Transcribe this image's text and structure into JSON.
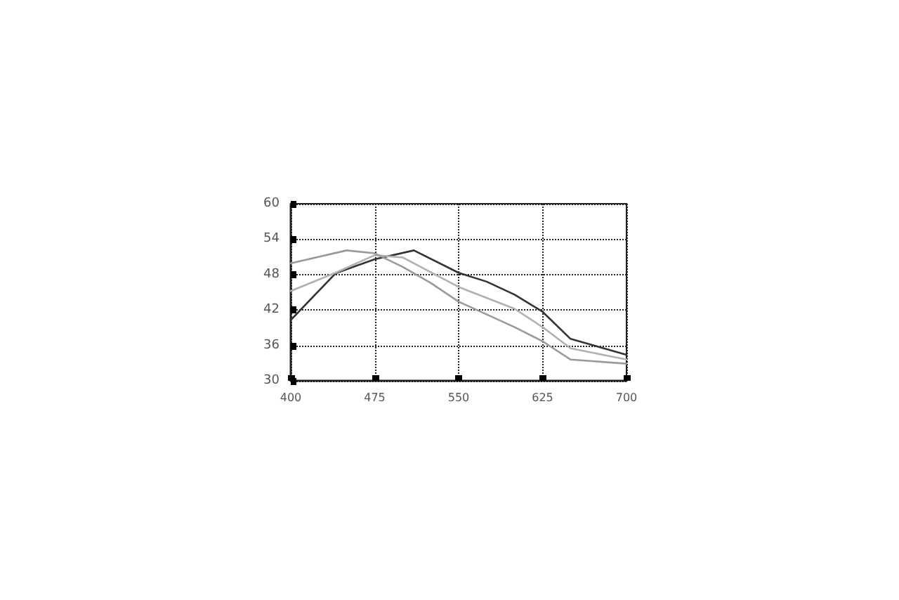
{
  "chart_data": {
    "type": "line",
    "xlim": [
      400,
      700
    ],
    "xticks": [
      400,
      475,
      550,
      625,
      700
    ],
    "ylim": [
      30,
      60
    ],
    "yticks": [
      30,
      36,
      42,
      48,
      54,
      60
    ],
    "grid": true,
    "marker": "none",
    "line_style": "solid",
    "series": [
      {
        "color": "#333333",
        "x": [
          400,
          440,
          475,
          510,
          550,
          575,
          600,
          625,
          650,
          700
        ],
        "values": [
          40.3,
          48.2,
          50.6,
          52.1,
          48.3,
          46.8,
          44.6,
          41.7,
          37.1,
          34.4
        ]
      },
      {
        "color": "#b0b0b0",
        "x": [
          400,
          440,
          475,
          500,
          550,
          600,
          625,
          650,
          700
        ],
        "values": [
          45.2,
          48.3,
          51.3,
          50.9,
          45.9,
          42.2,
          39.1,
          35.5,
          33.6
        ]
      },
      {
        "color": "#999999",
        "x": [
          400,
          450,
          475,
          500,
          525,
          550,
          600,
          625,
          650,
          700
        ],
        "values": [
          49.9,
          52.1,
          51.6,
          49.3,
          46.6,
          43.4,
          39.1,
          36.7,
          33.6,
          32.9
        ]
      }
    ]
  }
}
